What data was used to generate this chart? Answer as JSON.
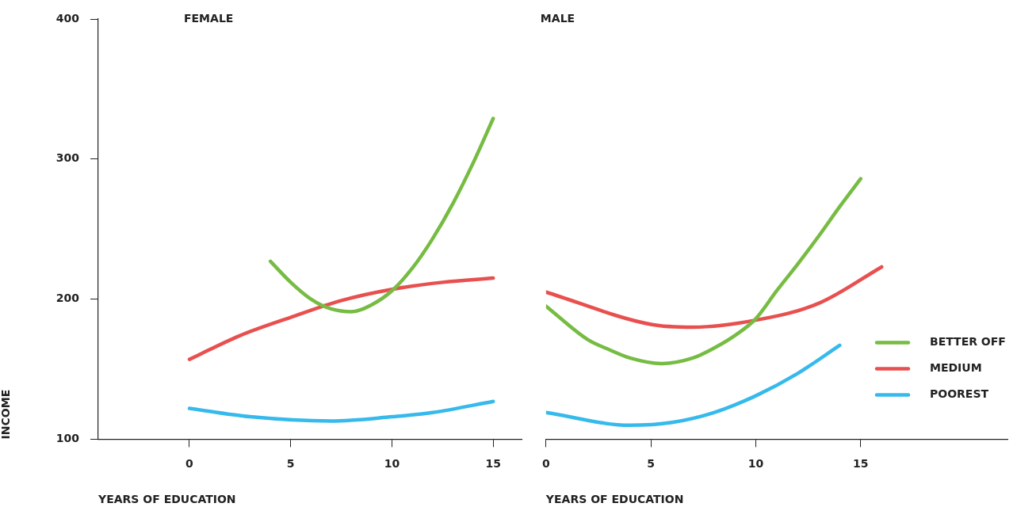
{
  "chart_data": [
    {
      "type": "line",
      "title": "FEMALE",
      "xlabel": "YEARS OF EDUCATION",
      "ylabel": "INCOME",
      "xlim": [
        -4.5,
        16.4
      ],
      "xticks": [
        0,
        5,
        10,
        15
      ],
      "ylim": [
        100,
        400
      ],
      "yticks": [
        100,
        200,
        300,
        400
      ],
      "grid": false,
      "legend": false,
      "marker": "none",
      "line_style": "solid",
      "series": [
        {
          "color": "#76bc43",
          "x": [
            4,
            5,
            6,
            7,
            8,
            9,
            10,
            11,
            12,
            13,
            14,
            15
          ],
          "values": [
            227,
            212,
            200,
            193,
            191,
            196,
            206,
            222,
            243,
            268,
            297,
            329
          ]
        },
        {
          "color": "#e8504f",
          "x": [
            0,
            2.5,
            5,
            7.5,
            10,
            12.5,
            15
          ],
          "values": [
            157,
            174,
            187,
            199,
            207,
            212,
            215
          ]
        },
        {
          "color": "#36b9eb",
          "x": [
            0,
            3,
            7,
            10,
            12,
            15
          ],
          "values": [
            122,
            116,
            113,
            116,
            119,
            127
          ]
        }
      ]
    },
    {
      "type": "line",
      "title": "MALE",
      "xlabel": "YEARS OF EDUCATION",
      "xlim": [
        0,
        22
      ],
      "xticks": [
        0,
        5,
        10,
        15
      ],
      "ylim": [
        100,
        400
      ],
      "yticks": [
        100,
        200,
        300,
        400
      ],
      "tick_labels": "x",
      "grid": false,
      "legend": "right",
      "marker": "none",
      "line_style": "solid",
      "series": [
        {
          "name": "BETTER OFF",
          "color": "#76bc43",
          "x": [
            0,
            2,
            3,
            4,
            5.5,
            7,
            8,
            9,
            10,
            11,
            12,
            13,
            14,
            15
          ],
          "values": [
            195,
            171,
            164,
            158,
            154,
            158,
            165,
            174,
            186,
            206,
            225,
            245,
            266,
            286
          ]
        },
        {
          "name": "MEDIUM",
          "color": "#e8504f",
          "x": [
            0,
            5,
            7,
            10,
            13,
            16
          ],
          "values": [
            205,
            182,
            180,
            185,
            197,
            223
          ]
        },
        {
          "name": "POOREST",
          "color": "#36b9eb",
          "x": [
            0,
            4,
            6,
            8,
            10,
            12,
            14
          ],
          "values": [
            119,
            110,
            112,
            119,
            131,
            147,
            167
          ]
        }
      ]
    }
  ]
}
